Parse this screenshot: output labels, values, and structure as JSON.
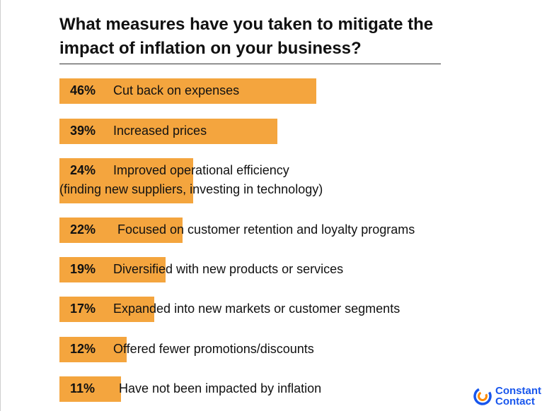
{
  "title": "What measures have you taken to mitigate the impact of inflation on your business?",
  "colors": {
    "bar": "#F4A53E",
    "logo_blue": "#1856ED",
    "logo_orange": "#FF8A00"
  },
  "logo": {
    "line1": "Constant",
    "line2": "Contact"
  },
  "chart_data": {
    "type": "bar",
    "orientation": "horizontal",
    "title": "What measures have you taken to mitigate the impact of inflation on your business?",
    "unit": "%",
    "xlim": [
      0,
      100
    ],
    "grid": false,
    "legend": "none",
    "categories": [
      {
        "value": 46,
        "value_label": "46%",
        "label": "Cut back on expenses",
        "label_line2": ""
      },
      {
        "value": 39,
        "value_label": "39%",
        "label": "Increased prices",
        "label_line2": ""
      },
      {
        "value": 24,
        "value_label": "24%",
        "label": "Improved operational efficiency",
        "label_line2": "(finding new suppliers, investing in technology)"
      },
      {
        "value": 22,
        "value_label": "22%",
        "label": "Focused on customer retention and loyalty programs",
        "label_line2": ""
      },
      {
        "value": 19,
        "value_label": "19%",
        "label": "Diversified with new products or services",
        "label_line2": ""
      },
      {
        "value": 17,
        "value_label": "17%",
        "label": "Expanded into new markets or customer segments",
        "label_line2": ""
      },
      {
        "value": 12,
        "value_label": "12%",
        "label": "Offered fewer promotions/discounts",
        "label_line2": ""
      },
      {
        "value": 11,
        "value_label": "11%",
        "label": "Have not been impacted by inflation",
        "label_line2": ""
      }
    ]
  }
}
